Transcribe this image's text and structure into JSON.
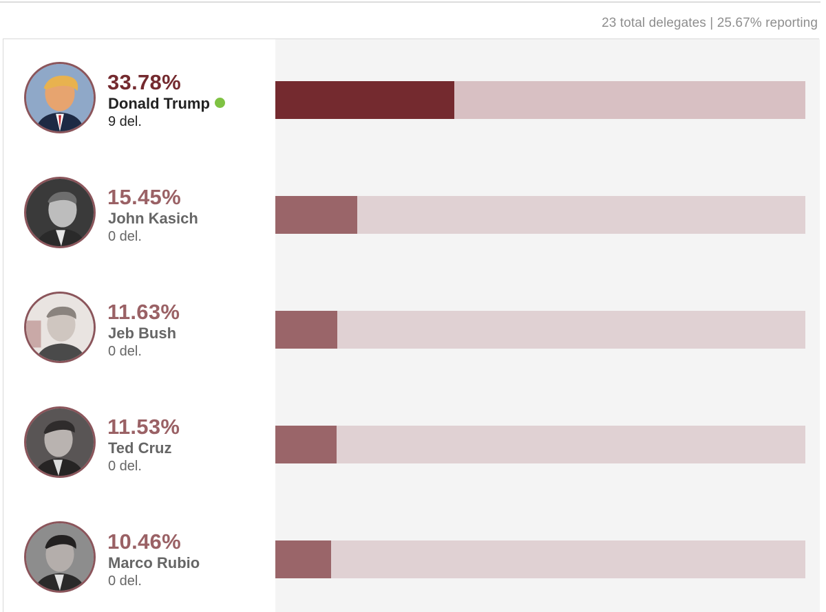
{
  "header": {
    "summary": "23 total delegates | 25.67% reporting"
  },
  "colors": {
    "leader_fill": "#742a2f",
    "leader_track": "#d8c0c3",
    "other_fill": "#9a6569",
    "other_track": "#e0d1d3",
    "winner_dot": "#7fc243"
  },
  "candidates": [
    {
      "pct_label": "33.78%",
      "name": "Donald Trump",
      "delegates": "9 del.",
      "winner": true
    },
    {
      "pct_label": "15.45%",
      "name": "John Kasich",
      "delegates": "0 del.",
      "winner": false
    },
    {
      "pct_label": "11.63%",
      "name": "Jeb Bush",
      "delegates": "0 del.",
      "winner": false
    },
    {
      "pct_label": "11.53%",
      "name": "Ted Cruz",
      "delegates": "0 del.",
      "winner": false
    },
    {
      "pct_label": "10.46%",
      "name": "Marco Rubio",
      "delegates": "0 del.",
      "winner": false
    }
  ],
  "chart_data": {
    "type": "bar",
    "orientation": "horizontal",
    "title": "",
    "categories": [
      "Donald Trump",
      "John Kasich",
      "Jeb Bush",
      "Ted Cruz",
      "Marco Rubio"
    ],
    "values": [
      33.78,
      15.45,
      11.63,
      11.53,
      10.46
    ],
    "delegates": [
      9,
      0,
      0,
      0,
      0
    ],
    "xlim": [
      0,
      100
    ],
    "unit": "%",
    "grid": false,
    "legend": "none"
  }
}
